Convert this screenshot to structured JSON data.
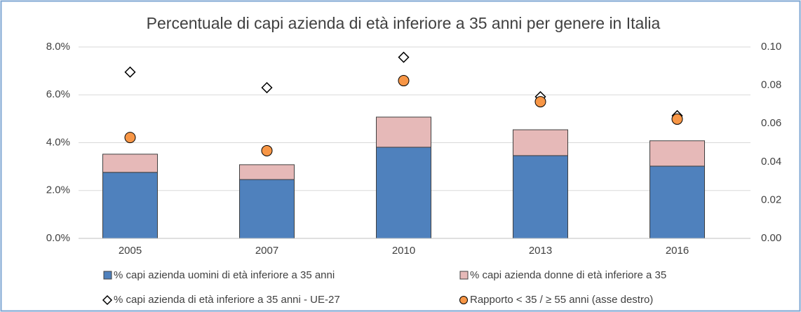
{
  "chart_data": {
    "type": "bar",
    "title": "Percentuale di capi azienda di età inferiore a 35 anni per genere in Italia",
    "categories": [
      "2005",
      "2007",
      "2010",
      "2013",
      "2016"
    ],
    "stacked": true,
    "series": [
      {
        "name": "% capi azienda uomini di età inferiore a 35 anni",
        "color": "#4f81bd",
        "kind": "bar",
        "values": [
          2.76,
          2.46,
          3.81,
          3.46,
          3.02
        ]
      },
      {
        "name": "% capi azienda donne di età inferiore a 35",
        "color": "#e6b9b8",
        "kind": "bar",
        "values": [
          0.76,
          0.62,
          1.26,
          1.08,
          1.06
        ]
      },
      {
        "name": "% capi azienda di età inferiore a 35 anni - UE-27",
        "color": "#ffffff",
        "kind": "diamond",
        "values": [
          6.95,
          6.3,
          7.57,
          5.92,
          5.13
        ]
      },
      {
        "name": "Rapporto < 35 / ≥ 55 anni (asse destro)",
        "color": "#f79646",
        "kind": "circle",
        "axis": "y2",
        "values": [
          0.0527,
          0.0458,
          0.0824,
          0.0714,
          0.0623
        ]
      }
    ],
    "ylim": [
      0,
      8
    ],
    "yticks": [
      {
        "value": 0,
        "label": "0.0%"
      },
      {
        "value": 2,
        "label": "2.0%"
      },
      {
        "value": 4,
        "label": "4.0%"
      },
      {
        "value": 6,
        "label": "6.0%"
      },
      {
        "value": 8,
        "label": "8.0%"
      }
    ],
    "y2lim": [
      0,
      0.1
    ],
    "y2ticks": [
      {
        "value": 0,
        "label": "0.00"
      },
      {
        "value": 0.02,
        "label": "0.02"
      },
      {
        "value": 0.04,
        "label": "0.04"
      },
      {
        "value": 0.06,
        "label": "0.06"
      },
      {
        "value": 0.08,
        "label": "0.08"
      },
      {
        "value": 0.1,
        "label": "0.10"
      }
    ],
    "grid": true
  }
}
